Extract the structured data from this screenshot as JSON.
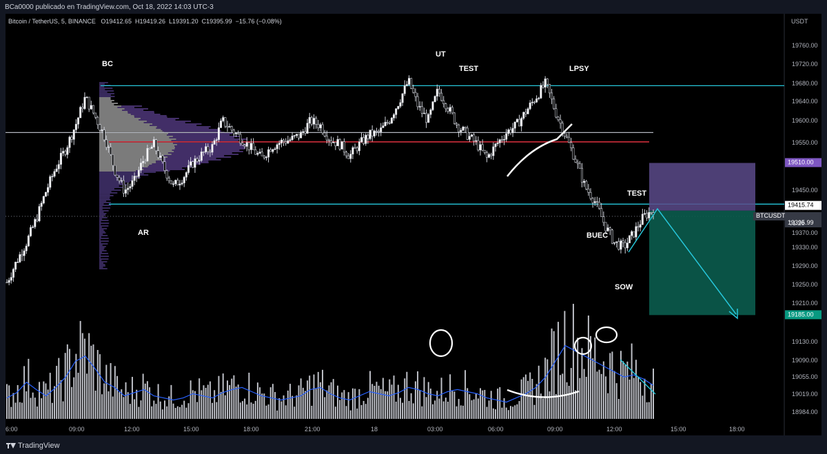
{
  "publish_line": "BCa0000 publicado en TradingView.com, Oct 18, 2022 14:03 UTC-3",
  "symbol": {
    "name": "Bitcoin / TetherUS, 5, BINANCE",
    "open": "O19412.65",
    "high": "H19419.26",
    "low": "L19391.20",
    "close": "C19395.99",
    "change": "−15.76 (−0.08%)"
  },
  "footer_brand": "TradingView",
  "chart_data": {
    "type": "candlestick",
    "currency_label": "USDT",
    "y_axis_ticks": [
      19760,
      19720,
      19680,
      19640,
      19600,
      19550,
      19450,
      19370,
      19330,
      19290,
      19250,
      19210,
      19130,
      19090,
      19055,
      19019,
      18984
    ],
    "y_axis_tick_labels": [
      "19760.00",
      "19720.00",
      "19680.00",
      "19640.00",
      "19600.00",
      "19550.00",
      "19450.00",
      "19370.00",
      "19330.00",
      "19290.00",
      "19250.00",
      "19210.00",
      "19130.00",
      "19090.00",
      "19055.00",
      "19019.00",
      "18984.00"
    ],
    "x_axis_labels": [
      "6:00",
      "09:00",
      "12:00",
      "15:00",
      "18:00",
      "21:00",
      "18",
      "03:00",
      "06:00",
      "09:00",
      "12:00",
      "15:00",
      "18:00"
    ],
    "price_labels": {
      "target_top": "19510.00",
      "current": "19415.74",
      "ticker": "BTCUSDT",
      "ticker_price": "19395.99",
      "countdown": "01:26",
      "target_bottom": "19185.00"
    },
    "annotations": [
      "BC",
      "AR",
      "UT",
      "TEST",
      "LPSY",
      "TEST",
      "BUEC",
      "SOW"
    ],
    "horizontal_levels": [
      {
        "value": 19675,
        "color": "#26c6da"
      },
      {
        "value": 19575,
        "color": "#b2b5be"
      },
      {
        "value": 19555,
        "color": "#f23645"
      },
      {
        "value": 19422,
        "color": "#26c6da"
      }
    ],
    "short_position": {
      "entry": 19408,
      "stop": 19510,
      "target": 19185
    },
    "price_path": [
      19255,
      19300,
      19340,
      19390,
      19450,
      19500,
      19540,
      19590,
      19650,
      19610,
      19565,
      19495,
      19450,
      19470,
      19520,
      19550,
      19500,
      19460,
      19480,
      19510,
      19530,
      19545,
      19600,
      19580,
      19560,
      19540,
      19520,
      19545,
      19555,
      19560,
      19570,
      19600,
      19590,
      19560,
      19550,
      19525,
      19550,
      19570,
      19575,
      19600,
      19640,
      19685,
      19630,
      19600,
      19665,
      19630,
      19590,
      19570,
      19550,
      19520,
      19550,
      19575,
      19590,
      19620,
      19650,
      19680,
      19620,
      19570,
      19520,
      19460,
      19430,
      19380,
      19340,
      19330,
      19360,
      19395,
      19410
    ],
    "volume_path": [
      20,
      25,
      35,
      28,
      22,
      30,
      40,
      55,
      60,
      48,
      35,
      30,
      22,
      25,
      28,
      22,
      20,
      18,
      20,
      24,
      22,
      20,
      25,
      28,
      30,
      26,
      22,
      20,
      18,
      20,
      22,
      28,
      30,
      24,
      20,
      18,
      22,
      26,
      24,
      22,
      25,
      30,
      28,
      24,
      22,
      26,
      28,
      26,
      24,
      20,
      18,
      16,
      20,
      24,
      30,
      40,
      55,
      70,
      65,
      60,
      55,
      50,
      45,
      40,
      42,
      38,
      32
    ]
  }
}
